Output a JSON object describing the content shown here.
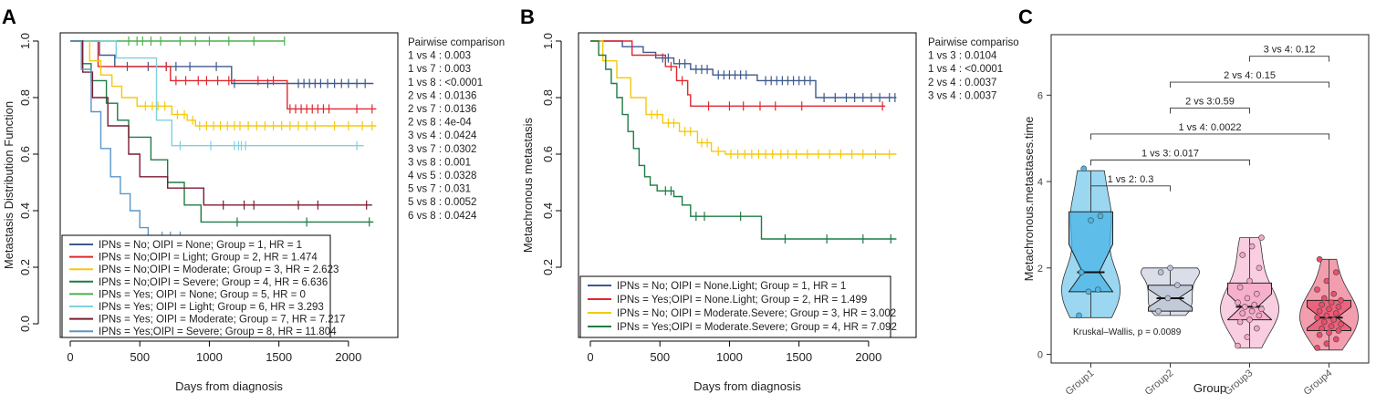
{
  "chart_data": [
    {
      "panel": "A",
      "type": "line",
      "subtype": "kaplan-meier",
      "xlabel": "Days from diagnosis",
      "ylabel": "Metastasis Distribution Function",
      "xlim": [
        0,
        2250
      ],
      "ylim": [
        0,
        1.0
      ],
      "xticks": [
        0,
        500,
        1000,
        1500,
        2000
      ],
      "yticks": [
        0.0,
        0.2,
        0.4,
        0.6,
        0.8,
        1.0
      ],
      "ytick_labels": [
        "0.0",
        "0.2",
        "0.4",
        "0.6",
        "0.8",
        "1.0"
      ],
      "legend_position": "bottom-left",
      "side_title": "Pairwise comparison",
      "pairwise": [
        "1 vs 4 : 0.003",
        "1 vs 7 : 0.003",
        "1 vs 8 : <0.0001",
        "2 vs 4 : 0.0136",
        "2 vs 7 : 0.0136",
        "2 vs 8 : 4e-04",
        "3 vs 4 : 0.0424",
        "3 vs 7 : 0.0302",
        "3 vs 8 : 0.001",
        "4 vs 5 : 0.0328",
        "5 vs 7 : 0.031",
        "5 vs 8 : 0.0052",
        "6 vs 8 : 0.0424"
      ],
      "series": [
        {
          "name": "IPNs = No; OIPI = None;  Group = 1, HR = 1",
          "color": "#3d5a8f",
          "steps": [
            [
              0,
              1.0
            ],
            [
              210,
              0.95
            ],
            [
              320,
              0.91
            ],
            [
              1160,
              0.85
            ],
            [
              2180,
              0.85
            ]
          ],
          "censor": [
            410,
            560,
            690,
            760,
            860,
            1050,
            1180,
            1420,
            1640,
            1680,
            1720,
            1760,
            1800,
            1850,
            1900,
            1950,
            2000,
            2060,
            2120
          ]
        },
        {
          "name": "IPNs = No;OIPI = Light;  Group = 2, HR = 1.474",
          "color": "#e0282e",
          "steps": [
            [
              0,
              1.0
            ],
            [
              200,
              0.91
            ],
            [
              720,
              0.86
            ],
            [
              1560,
              0.76
            ],
            [
              2200,
              0.76
            ]
          ],
          "censor": [
            690,
            760,
            830,
            920,
            980,
            1060,
            1140,
            1350,
            1460,
            1580,
            1620,
            1660,
            1700,
            1740,
            1780,
            1820,
            1860,
            2060,
            2170
          ]
        },
        {
          "name": "IPNs = No;OIPI = Moderate; Group = 3, HR = 2.623",
          "color": "#f5c80d",
          "steps": [
            [
              0,
              1.0
            ],
            [
              140,
              0.93
            ],
            [
              220,
              0.88
            ],
            [
              300,
              0.84
            ],
            [
              370,
              0.8
            ],
            [
              480,
              0.77
            ],
            [
              730,
              0.74
            ],
            [
              840,
              0.72
            ],
            [
              900,
              0.7
            ],
            [
              2200,
              0.7
            ]
          ],
          "censor": [
            540,
            590,
            630,
            680,
            770,
            820,
            880,
            930,
            980,
            1030,
            1080,
            1130,
            1180,
            1220,
            1280,
            1340,
            1400,
            1460,
            1520,
            1580,
            1640,
            1700,
            1760,
            1900,
            2000,
            2100,
            2170
          ]
        },
        {
          "name": "IPNs = No;OIPI = Severe; Group = 4, HR = 6.636",
          "color": "#1d7c43",
          "steps": [
            [
              0,
              1.0
            ],
            [
              80,
              0.92
            ],
            [
              150,
              0.86
            ],
            [
              260,
              0.78
            ],
            [
              340,
              0.72
            ],
            [
              420,
              0.66
            ],
            [
              580,
              0.58
            ],
            [
              700,
              0.5
            ],
            [
              820,
              0.42
            ],
            [
              940,
              0.36
            ],
            [
              2180,
              0.36
            ]
          ],
          "censor": [
            1200,
            1700,
            2150
          ]
        },
        {
          "name": "IPNs = Yes; OIPI = None;  Group = 5, HR = 0",
          "color": "#4cb04c",
          "steps": [
            [
              0,
              1.0
            ],
            [
              1540,
              1.0
            ]
          ],
          "censor": [
            420,
            480,
            520,
            580,
            650,
            790,
            900,
            1000,
            1140,
            1320,
            1540
          ]
        },
        {
          "name": "IPNs = Yes; OIPI = Light;  Group = 6, HR = 3.293",
          "color": "#7fd0de",
          "steps": [
            [
              0,
              1.0
            ],
            [
              330,
              0.94
            ],
            [
              620,
              0.72
            ],
            [
              730,
              0.63
            ],
            [
              2110,
              0.63
            ]
          ],
          "censor": [
            790,
            1010,
            1180,
            1210,
            1230,
            1260,
            2060
          ]
        },
        {
          "name": "IPNs = Yes; OIPI = Moderate; Group = 7, HR = 7.217",
          "color": "#7a1c33",
          "steps": [
            [
              0,
              1.0
            ],
            [
              90,
              0.89
            ],
            [
              160,
              0.8
            ],
            [
              270,
              0.7
            ],
            [
              420,
              0.6
            ],
            [
              500,
              0.52
            ],
            [
              700,
              0.48
            ],
            [
              960,
              0.42
            ],
            [
              2170,
              0.42
            ]
          ],
          "censor": [
            1100,
            1250,
            1320,
            1640,
            1780,
            2130
          ]
        },
        {
          "name": "IPNs = Yes;OIPI = Severe; Group = 8, HR = 11.804",
          "color": "#5b95c6",
          "steps": [
            [
              0,
              1.0
            ],
            [
              80,
              0.9
            ],
            [
              150,
              0.75
            ],
            [
              220,
              0.62
            ],
            [
              290,
              0.52
            ],
            [
              360,
              0.46
            ],
            [
              430,
              0.4
            ],
            [
              500,
              0.34
            ],
            [
              560,
              0.31
            ],
            [
              1250,
              0.31
            ],
            [
              1250,
              0.0
            ],
            [
              1550,
              0.0
            ]
          ],
          "censor": [
            660,
            720,
            790
          ]
        }
      ]
    },
    {
      "panel": "B",
      "type": "line",
      "subtype": "kaplan-meier",
      "xlabel": "Days from diagnosis",
      "ylabel": "Metachronous metastasis",
      "xlim": [
        0,
        2250
      ],
      "ylim": [
        0,
        1.0
      ],
      "xticks": [
        0,
        500,
        1000,
        1500,
        2000
      ],
      "yticks": [
        0.2,
        0.4,
        0.6,
        0.8,
        1.0
      ],
      "ytick_labels": [
        "0.2",
        "0.4",
        "0.6",
        "0.8",
        "1.0"
      ],
      "legend_position": "bottom-left",
      "side_title": "Pairwise compariso",
      "pairwise": [
        "1 vs 3 : 0.0104",
        "1 vs 4 : <0.0001",
        "2 vs 4 : 0.0037",
        "3 vs 4 : 0.0037"
      ],
      "series": [
        {
          "name": "IPNs = No; OIPI = None.Light; Group = 1, HR = 1",
          "color": "#3d5a8f",
          "steps": [
            [
              0,
              1.0
            ],
            [
              230,
              0.98
            ],
            [
              380,
              0.96
            ],
            [
              470,
              0.94
            ],
            [
              600,
              0.92
            ],
            [
              720,
              0.9
            ],
            [
              880,
              0.88
            ],
            [
              1200,
              0.86
            ],
            [
              1620,
              0.8
            ],
            [
              2200,
              0.8
            ]
          ],
          "censor": [
            520,
            560,
            640,
            680,
            760,
            800,
            840,
            920,
            960,
            1000,
            1040,
            1080,
            1120,
            1260,
            1300,
            1340,
            1380,
            1420,
            1460,
            1500,
            1540,
            1580,
            1680,
            1760,
            1840,
            1900,
            1960,
            2020,
            2080,
            2150,
            2190
          ]
        },
        {
          "name": "IPNs = Yes;OIPI = None.Light; Group = 2, HR = 1.499",
          "color": "#e0282e",
          "steps": [
            [
              0,
              1.0
            ],
            [
              300,
              0.95
            ],
            [
              540,
              0.91
            ],
            [
              620,
              0.86
            ],
            [
              700,
              0.81
            ],
            [
              720,
              0.77
            ],
            [
              2120,
              0.77
            ]
          ],
          "censor": [
            580,
            660,
            850,
            1000,
            1100,
            1220,
            1330,
            1520,
            2100
          ]
        },
        {
          "name": "IPNs = No; OIPI = Moderate.Severe; Group = 3, HR = 3.002",
          "color": "#f5c80d",
          "steps": [
            [
              0,
              1.0
            ],
            [
              90,
              0.93
            ],
            [
              190,
              0.87
            ],
            [
              290,
              0.8
            ],
            [
              400,
              0.74
            ],
            [
              520,
              0.71
            ],
            [
              640,
              0.68
            ],
            [
              770,
              0.64
            ],
            [
              870,
              0.61
            ],
            [
              970,
              0.6
            ],
            [
              2200,
              0.6
            ]
          ],
          "censor": [
            440,
            480,
            560,
            600,
            680,
            720,
            800,
            840,
            920,
            1010,
            1060,
            1110,
            1160,
            1210,
            1260,
            1310,
            1370,
            1420,
            1480,
            1560,
            1640,
            1720,
            1800,
            1880,
            1960,
            2050,
            2150
          ]
        },
        {
          "name": "IPNs = Yes;OIPI = Moderate.Severe; Group = 4, HR = 7.092",
          "color": "#1d7c43",
          "steps": [
            [
              0,
              1.0
            ],
            [
              60,
              0.95
            ],
            [
              110,
              0.9
            ],
            [
              150,
              0.85
            ],
            [
              190,
              0.8
            ],
            [
              230,
              0.74
            ],
            [
              270,
              0.68
            ],
            [
              310,
              0.62
            ],
            [
              350,
              0.56
            ],
            [
              390,
              0.52
            ],
            [
              430,
              0.49
            ],
            [
              480,
              0.47
            ],
            [
              600,
              0.45
            ],
            [
              660,
              0.42
            ],
            [
              720,
              0.38
            ],
            [
              800,
              0.38
            ],
            [
              1230,
              0.3
            ],
            [
              2200,
              0.3
            ]
          ],
          "censor": [
            540,
            580,
            760,
            820,
            1080,
            1400,
            1700,
            1960,
            2160
          ]
        }
      ]
    },
    {
      "panel": "C",
      "type": "violin-box",
      "xlabel": "Group",
      "ylabel": "Metachronous.metastases.time",
      "ylim": [
        -0.2,
        7.4
      ],
      "yticks": [
        0,
        2,
        4,
        6
      ],
      "ytick_labels": [
        "0",
        "2",
        "4",
        "6"
      ],
      "categories": [
        "Group1",
        "Group2",
        "Group3",
        "Group4"
      ],
      "annotation": "Kruskal–Wallis, p = 0.0089",
      "brackets": [
        {
          "from": 0,
          "to": 1,
          "label": "1 vs 2: 0.3",
          "y": 3.9
        },
        {
          "from": 0,
          "to": 2,
          "label": "1 vs 3: 0.017",
          "y": 4.5
        },
        {
          "from": 0,
          "to": 3,
          "label": "1 vs 4: 0.0022",
          "y": 5.1
        },
        {
          "from": 1,
          "to": 2,
          "label": "2 vs 3:0.59",
          "y": 5.7
        },
        {
          "from": 1,
          "to": 3,
          "label": "2 vs 4: 0.15",
          "y": 6.3
        },
        {
          "from": 2,
          "to": 3,
          "label": "3 vs 4: 0.12",
          "y": 6.9
        }
      ],
      "boxes": [
        {
          "group": "Group1",
          "q1": 1.45,
          "median": 1.9,
          "q3": 3.3,
          "whisker_low": 0.85,
          "whisker_high": 4.25,
          "color": "#4bb6e6",
          "points": [
            0.9,
            1.45,
            1.5,
            1.9,
            3.1,
            3.2,
            4.3
          ]
        },
        {
          "group": "Group2",
          "q1": 1.0,
          "median": 1.3,
          "q3": 1.6,
          "whisker_low": 0.9,
          "whisker_high": 2.0,
          "color": "#b9c3d6",
          "points": [
            1.0,
            1.3,
            1.6,
            1.9,
            2.0
          ]
        },
        {
          "group": "Group3",
          "q1": 0.8,
          "median": 1.1,
          "q3": 1.65,
          "whisker_low": 0.15,
          "whisker_high": 2.7,
          "color": "#f4a6c6",
          "points": [
            0.2,
            0.4,
            0.6,
            0.75,
            0.8,
            0.9,
            0.95,
            1.0,
            1.05,
            1.1,
            1.15,
            1.2,
            1.3,
            1.4,
            1.55,
            1.7,
            2.0,
            2.3,
            2.5,
            2.7
          ]
        },
        {
          "group": "Group4",
          "q1": 0.55,
          "median": 0.85,
          "q3": 1.25,
          "whisker_low": 0.1,
          "whisker_high": 2.2,
          "color": "#ea4f6c",
          "points": [
            0.15,
            0.25,
            0.35,
            0.45,
            0.5,
            0.55,
            0.6,
            0.65,
            0.7,
            0.75,
            0.8,
            0.85,
            0.9,
            0.95,
            1.0,
            1.05,
            1.1,
            1.15,
            1.2,
            1.25,
            1.3,
            1.4,
            1.5,
            1.7,
            1.9,
            2.2
          ]
        }
      ]
    }
  ]
}
